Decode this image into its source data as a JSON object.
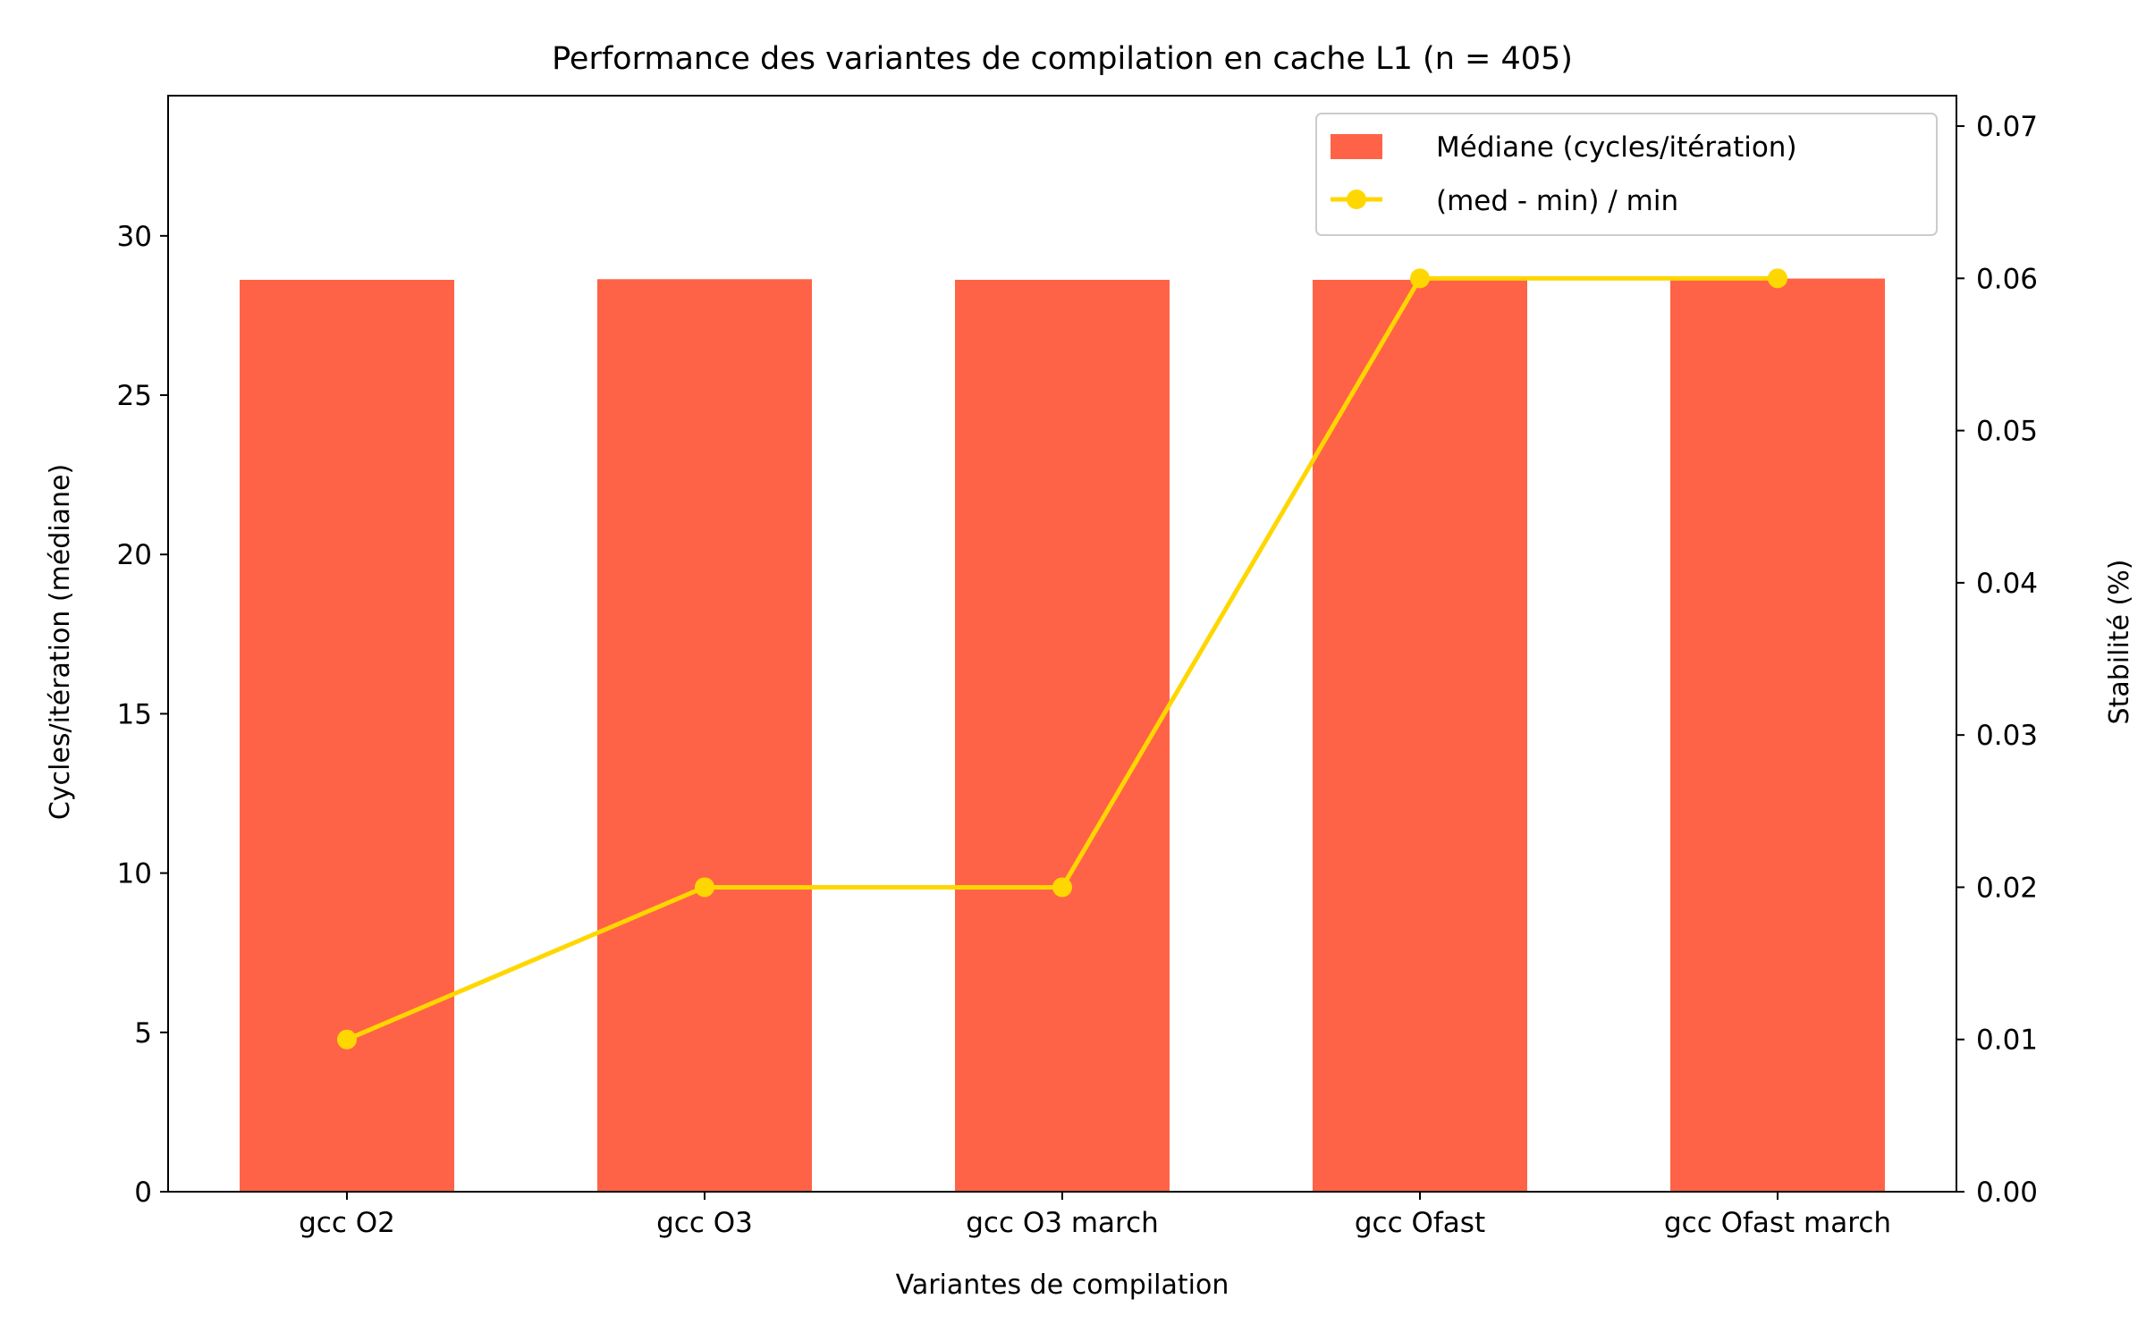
{
  "chart_data": {
    "type": "bar",
    "title": "Performance des variantes de compilation en cache L1 (n = 405)",
    "xlabel": "Variantes de compilation",
    "ylabel": "Cycles/itération (médiane)",
    "y2label": "Stabilité (%)",
    "categories": [
      "gcc O2",
      "gcc O3",
      "gcc O3 march",
      "gcc Ofast",
      "gcc Ofast march"
    ],
    "series": [
      {
        "name": "Médiane (cycles/itération)",
        "type": "bar",
        "axis": "left",
        "color": "#ff6347",
        "values": [
          28.62,
          28.64,
          28.62,
          28.62,
          28.66
        ]
      },
      {
        "name": "(med - min) / min",
        "type": "line",
        "axis": "right",
        "color": "#ffd700",
        "values": [
          0.01,
          0.02,
          0.02,
          0.06,
          0.06
        ]
      }
    ],
    "ylim": [
      0,
      34.4
    ],
    "yticks": [
      0,
      5,
      10,
      15,
      20,
      25,
      30
    ],
    "y2lim": [
      0,
      0.072
    ],
    "y2ticks": [
      "0.00",
      "0.01",
      "0.02",
      "0.03",
      "0.04",
      "0.05",
      "0.06",
      "0.07"
    ],
    "legend_position": "top-right",
    "grid": false
  }
}
